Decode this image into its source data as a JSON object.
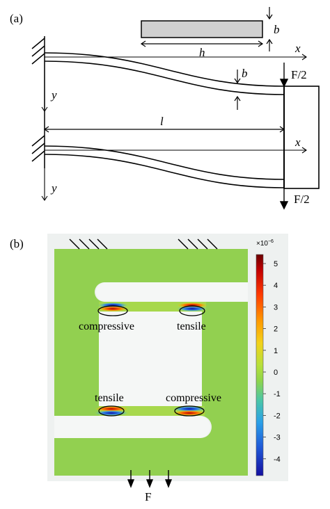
{
  "panel_a": {
    "label": "(a)",
    "symbols": {
      "b_top": "b",
      "h": "h",
      "x_top": "x",
      "b_mid": "b",
      "y_top": "y",
      "l": "l",
      "x_bottom": "x",
      "y_bottom": "y"
    },
    "forces": {
      "top": "F/2",
      "bottom": "F/2"
    }
  },
  "panel_b": {
    "label": "(b)",
    "annotations": {
      "top_left": "compressive",
      "top_right": "tensile",
      "bottom_left": "tensile",
      "bottom_right": "compressive"
    },
    "force": "F",
    "colorbar": {
      "multiplier": "×10",
      "exponent": "−6",
      "ticks": [
        "5",
        "4",
        "3",
        "2",
        "1",
        "0",
        "-1",
        "-2",
        "-3",
        "-4"
      ],
      "colors": [
        "#7f0000",
        "#d60000",
        "#ff5a00",
        "#ffb300",
        "#d9e81b",
        "#8fd54a",
        "#49c4a6",
        "#2c9be0",
        "#1f55d6",
        "#1a1aa8"
      ]
    }
  }
}
